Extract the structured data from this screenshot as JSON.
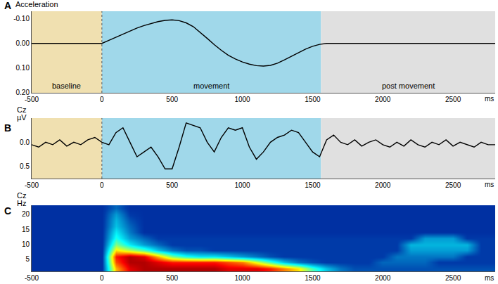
{
  "chart_data": [
    {
      "type": "line",
      "panel": "A",
      "ylabel": "Acceleration",
      "xlabel": "ms",
      "x": [
        -500,
        -450,
        -400,
        -350,
        -300,
        -250,
        -200,
        -150,
        -100,
        -50,
        0,
        50,
        100,
        150,
        200,
        250,
        300,
        350,
        400,
        450,
        500,
        550,
        600,
        650,
        700,
        750,
        800,
        850,
        900,
        950,
        1000,
        1050,
        1100,
        1150,
        1200,
        1250,
        1300,
        1350,
        1400,
        1450,
        1500,
        1550,
        1600,
        1650,
        1700,
        1750,
        1800,
        1850,
        1900,
        1950,
        2000,
        2050,
        2100,
        2150,
        2200,
        2250,
        2300,
        2350,
        2400,
        2450,
        2500,
        2550,
        2600,
        2650,
        2700,
        2750,
        2800
      ],
      "values": [
        0,
        0,
        0,
        0,
        0,
        0,
        0,
        0,
        0,
        0,
        0,
        -0.012,
        -0.025,
        -0.038,
        -0.05,
        -0.062,
        -0.072,
        -0.081,
        -0.088,
        -0.093,
        -0.095,
        -0.092,
        -0.083,
        -0.068,
        -0.045,
        -0.02,
        0.005,
        0.028,
        0.048,
        0.063,
        0.075,
        0.084,
        0.09,
        0.092,
        0.089,
        0.08,
        0.067,
        0.052,
        0.037,
        0.023,
        0.012,
        0.004,
        0,
        0,
        0,
        0,
        0,
        0,
        0,
        0,
        0,
        0,
        0,
        0,
        0,
        0,
        0,
        0,
        0,
        0,
        0,
        0,
        0,
        0,
        0,
        0,
        0
      ],
      "color": "#000000",
      "xlim": [
        -500,
        2800
      ],
      "xticks": [
        -500,
        0,
        500,
        1000,
        1500,
        2000,
        2500
      ],
      "ylim": [
        0.2,
        -0.13
      ],
      "yticks": [
        {
          "value": -0.1,
          "label": "-0.10"
        },
        {
          "value": 0,
          "label": "0.00"
        },
        {
          "value": 0.1,
          "label": "0.10"
        },
        {
          "value": 0.2,
          "label": "0.20"
        }
      ],
      "regions": [
        {
          "label": "baseline",
          "start": -500,
          "end": 0,
          "color": "#f0e0b0"
        },
        {
          "label": "movement",
          "start": 0,
          "end": 1560,
          "color": "#a0d8ea"
        },
        {
          "label": "post movement",
          "start": 1560,
          "end": 2800,
          "color": "#e0e0e0"
        }
      ],
      "grid": false
    },
    {
      "type": "line",
      "panel": "B",
      "ylabel": "Cz",
      "yunit": "µV",
      "xlabel": "ms",
      "x": [
        -500,
        -450,
        -400,
        -350,
        -300,
        -250,
        -200,
        -150,
        -100,
        -50,
        0,
        50,
        100,
        150,
        200,
        250,
        300,
        350,
        400,
        450,
        500,
        550,
        600,
        650,
        700,
        750,
        800,
        850,
        900,
        950,
        1000,
        1050,
        1100,
        1150,
        1200,
        1250,
        1300,
        1350,
        1400,
        1450,
        1500,
        1550,
        1600,
        1650,
        1700,
        1750,
        1800,
        1850,
        1900,
        1950,
        2000,
        2050,
        2100,
        2150,
        2200,
        2250,
        2300,
        2350,
        2400,
        2450,
        2500,
        2550,
        2600,
        2650,
        2700,
        2750,
        2800
      ],
      "values": [
        0.05,
        0.1,
        0.0,
        0.05,
        -0.05,
        0.08,
        0.0,
        0.05,
        -0.05,
        -0.1,
        0.0,
        0.05,
        -0.2,
        -0.3,
        0.0,
        0.3,
        0.2,
        0.1,
        0.3,
        0.55,
        0.55,
        0.1,
        -0.4,
        -0.35,
        -0.3,
        0.0,
        0.2,
        -0.1,
        -0.3,
        -0.25,
        -0.3,
        0.1,
        0.35,
        0.2,
        0.0,
        -0.1,
        -0.15,
        -0.25,
        -0.2,
        0.0,
        0.2,
        0.3,
        -0.05,
        -0.15,
        0.0,
        0.05,
        -0.05,
        0.08,
        0.0,
        -0.05,
        0.05,
        0.1,
        0.0,
        0.08,
        -0.05,
        0.05,
        0.1,
        0.0,
        0.05,
        -0.05,
        0.08,
        0.0,
        0.05,
        0.1,
        0.0,
        0.05,
        0.05
      ],
      "color": "#000000",
      "xlim": [
        -500,
        2800
      ],
      "xticks": [
        -500,
        0,
        500,
        1000,
        1500,
        2000,
        2500
      ],
      "ylim": [
        0.75,
        -0.5
      ],
      "yticks": [
        {
          "value": 0,
          "label": "0.0"
        },
        0.5
      ],
      "regions": [
        {
          "start": -500,
          "end": 0,
          "color": "#f0e0b0"
        },
        {
          "start": 0,
          "end": 1560,
          "color": "#a0d8ea"
        },
        {
          "start": 1560,
          "end": 2800,
          "color": "#e0e0e0"
        }
      ],
      "grid": false
    },
    {
      "type": "heatmap",
      "panel": "C",
      "ylabel": "Cz",
      "yunit": "Hz",
      "xlabel": "ms",
      "x": [
        -500,
        -400,
        -300,
        -200,
        -100,
        0,
        100,
        200,
        300,
        400,
        500,
        600,
        700,
        800,
        900,
        1000,
        1100,
        1200,
        1300,
        1400,
        1500,
        1600,
        1700,
        1800,
        1900,
        2000,
        2100,
        2200,
        2300,
        2400,
        2500,
        2600,
        2700,
        2800
      ],
      "y": [
        2,
        4,
        6,
        8,
        10,
        12,
        14,
        16,
        18,
        20,
        22
      ],
      "z": [
        [
          0.1,
          0.1,
          0.1,
          0.1,
          0.1,
          0.1,
          0.7,
          0.9,
          0.95,
          0.95,
          0.95,
          0.95,
          0.95,
          0.95,
          0.9,
          0.9,
          0.9,
          0.85,
          0.75,
          0.65,
          0.45,
          0.3,
          0.2,
          0.15,
          0.15,
          0.15,
          0.15,
          0.15,
          0.15,
          0.15,
          0.15,
          0.15,
          0.15,
          0.15
        ],
        [
          0.1,
          0.1,
          0.1,
          0.1,
          0.1,
          0.1,
          0.8,
          0.95,
          0.95,
          0.9,
          0.85,
          0.85,
          0.85,
          0.85,
          0.8,
          0.75,
          0.6,
          0.45,
          0.3,
          0.2,
          0.15,
          0.12,
          0.12,
          0.12,
          0.12,
          0.18,
          0.18,
          0.18,
          0.18,
          0.12,
          0.12,
          0.12,
          0.12,
          0.12
        ],
        [
          0.1,
          0.1,
          0.1,
          0.1,
          0.1,
          0.1,
          0.85,
          0.95,
          0.9,
          0.7,
          0.5,
          0.4,
          0.35,
          0.35,
          0.3,
          0.25,
          0.2,
          0.15,
          0.12,
          0.12,
          0.12,
          0.12,
          0.12,
          0.12,
          0.12,
          0.12,
          0.2,
          0.2,
          0.2,
          0.2,
          0.2,
          0.12,
          0.12,
          0.12
        ],
        [
          0.1,
          0.1,
          0.1,
          0.1,
          0.1,
          0.1,
          0.65,
          0.55,
          0.45,
          0.3,
          0.2,
          0.15,
          0.15,
          0.12,
          0.12,
          0.12,
          0.12,
          0.12,
          0.12,
          0.12,
          0.12,
          0.12,
          0.12,
          0.12,
          0.12,
          0.12,
          0.12,
          0.25,
          0.25,
          0.25,
          0.25,
          0.25,
          0.12,
          0.12
        ],
        [
          0.1,
          0.1,
          0.1,
          0.1,
          0.1,
          0.1,
          0.5,
          0.35,
          0.25,
          0.18,
          0.12,
          0.12,
          0.12,
          0.12,
          0.12,
          0.12,
          0.12,
          0.12,
          0.12,
          0.12,
          0.12,
          0.12,
          0.12,
          0.12,
          0.12,
          0.12,
          0.12,
          0.28,
          0.28,
          0.28,
          0.28,
          0.28,
          0.12,
          0.12
        ],
        [
          0.1,
          0.1,
          0.1,
          0.1,
          0.1,
          0.1,
          0.4,
          0.25,
          0.18,
          0.12,
          0.12,
          0.12,
          0.12,
          0.12,
          0.12,
          0.12,
          0.12,
          0.12,
          0.12,
          0.12,
          0.12,
          0.12,
          0.12,
          0.12,
          0.12,
          0.12,
          0.12,
          0.12,
          0.25,
          0.25,
          0.25,
          0.12,
          0.12,
          0.12
        ],
        [
          0.1,
          0.1,
          0.1,
          0.1,
          0.1,
          0.1,
          0.35,
          0.2,
          0.1,
          0.1,
          0.1,
          0.1,
          0.1,
          0.1,
          0.1,
          0.1,
          0.1,
          0.1,
          0.1,
          0.1,
          0.1,
          0.1,
          0.1,
          0.1,
          0.1,
          0.1,
          0.1,
          0.1,
          0.1,
          0.1,
          0.1,
          0.1,
          0.1,
          0.1
        ],
        [
          0.1,
          0.1,
          0.1,
          0.1,
          0.1,
          0.1,
          0.3,
          0.18,
          0.1,
          0.1,
          0.1,
          0.1,
          0.1,
          0.1,
          0.1,
          0.1,
          0.1,
          0.1,
          0.1,
          0.1,
          0.1,
          0.1,
          0.1,
          0.1,
          0.1,
          0.1,
          0.1,
          0.1,
          0.1,
          0.1,
          0.1,
          0.1,
          0.1,
          0.1
        ],
        [
          0.1,
          0.1,
          0.1,
          0.1,
          0.1,
          0.1,
          0.28,
          0.15,
          0.1,
          0.1,
          0.1,
          0.1,
          0.1,
          0.1,
          0.1,
          0.1,
          0.1,
          0.1,
          0.1,
          0.1,
          0.1,
          0.1,
          0.1,
          0.1,
          0.1,
          0.1,
          0.1,
          0.1,
          0.1,
          0.1,
          0.1,
          0.1,
          0.1,
          0.1
        ],
        [
          0.1,
          0.1,
          0.1,
          0.1,
          0.1,
          0.1,
          0.25,
          0.12,
          0.1,
          0.1,
          0.1,
          0.1,
          0.1,
          0.1,
          0.1,
          0.1,
          0.1,
          0.1,
          0.1,
          0.1,
          0.1,
          0.1,
          0.1,
          0.1,
          0.1,
          0.1,
          0.1,
          0.1,
          0.1,
          0.1,
          0.1,
          0.1,
          0.1,
          0.1
        ],
        [
          0.1,
          0.1,
          0.1,
          0.1,
          0.1,
          0.1,
          0.18,
          0.1,
          0.1,
          0.1,
          0.1,
          0.1,
          0.1,
          0.1,
          0.1,
          0.1,
          0.1,
          0.1,
          0.1,
          0.1,
          0.1,
          0.1,
          0.1,
          0.1,
          0.1,
          0.1,
          0.1,
          0.1,
          0.1,
          0.1,
          0.1,
          0.1,
          0.1,
          0.1
        ]
      ],
      "zlim": [
        0,
        1
      ],
      "color": "Jet",
      "xlim": [
        -500,
        2800
      ],
      "xticks": [
        -500,
        0,
        500,
        1000,
        1500,
        2000,
        2500
      ],
      "ylim": [
        1,
        23
      ],
      "yticks": [
        5,
        10,
        15,
        20
      ],
      "grid": false
    }
  ]
}
